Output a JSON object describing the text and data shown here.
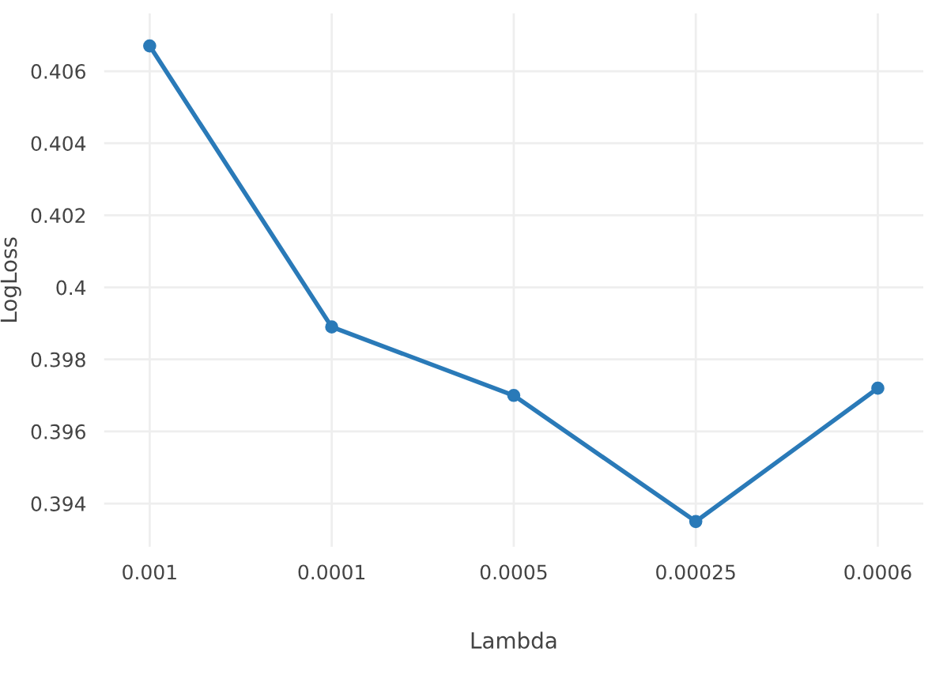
{
  "chart_data": {
    "type": "line",
    "xlabel": "Lambda",
    "ylabel": "LogLoss",
    "categories": [
      "0.001",
      "0.0001",
      "0.0005",
      "0.00025",
      "0.0006"
    ],
    "series": [
      {
        "color": "#2a7ab8",
        "values": [
          0.4067,
          0.3989,
          0.397,
          0.3935,
          0.3972
        ]
      }
    ],
    "ylim": [
      0.3928,
      0.4076
    ],
    "yticks": [
      0.394,
      0.396,
      0.398,
      0.4,
      0.402,
      0.404,
      0.406
    ],
    "grid": true,
    "marker": "circle",
    "line_style": "solid"
  }
}
